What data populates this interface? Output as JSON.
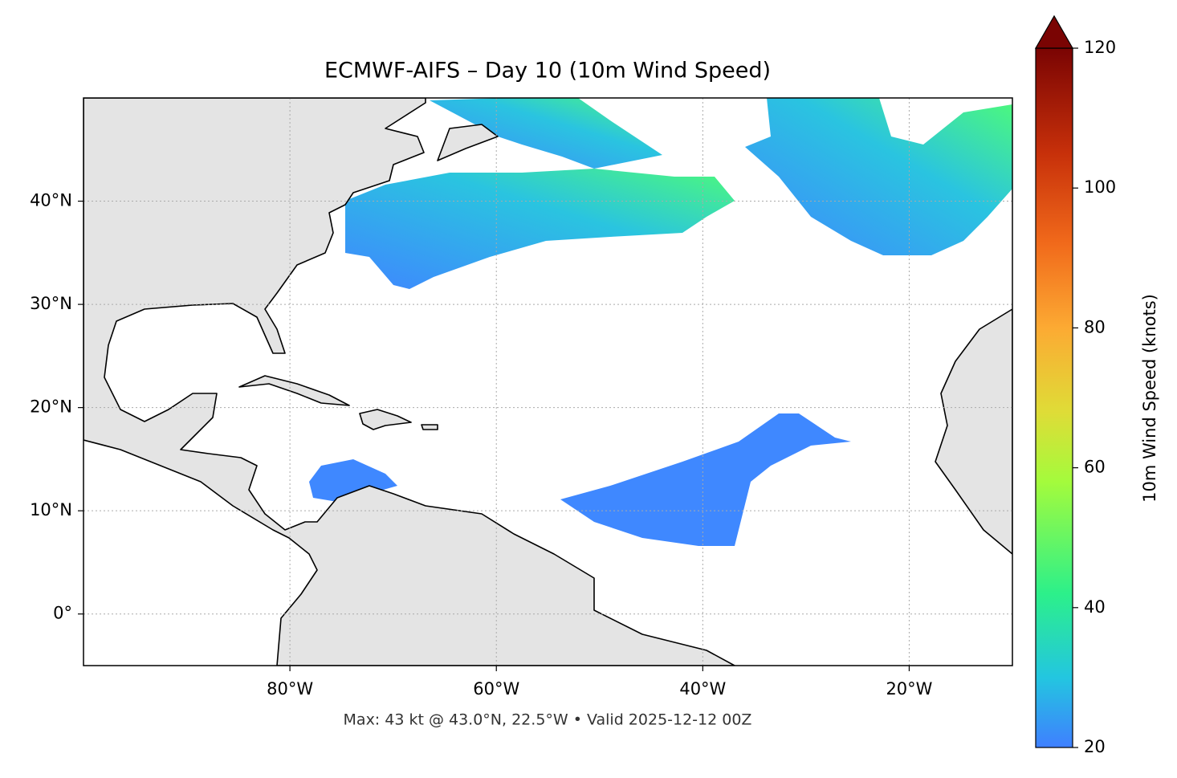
{
  "map": {
    "title": "ECMWF-AIFS – Day 10 (10m Wind Speed)",
    "xlim": [
      -100,
      -10
    ],
    "ylim": [
      -5,
      50
    ],
    "xticks": [
      {
        "value": -80,
        "label": "80°W"
      },
      {
        "value": -60,
        "label": "60°W"
      },
      {
        "value": -40,
        "label": "40°W"
      },
      {
        "value": -20,
        "label": "20°W"
      }
    ],
    "yticks": [
      {
        "value": 0,
        "label": "0°"
      },
      {
        "value": 10,
        "label": "10°N"
      },
      {
        "value": 20,
        "label": "20°N"
      },
      {
        "value": 30,
        "label": "30°N"
      },
      {
        "value": 40,
        "label": "40°N"
      }
    ],
    "footer": "Max: 43 kt @ 43.0°N, 22.5°W • Valid 2025-12-12 00Z"
  },
  "colorbar": {
    "label": "10m Wind Speed (knots)",
    "lim": [
      20,
      120
    ],
    "ticks": [
      20,
      40,
      60,
      80,
      100,
      120
    ]
  }
}
